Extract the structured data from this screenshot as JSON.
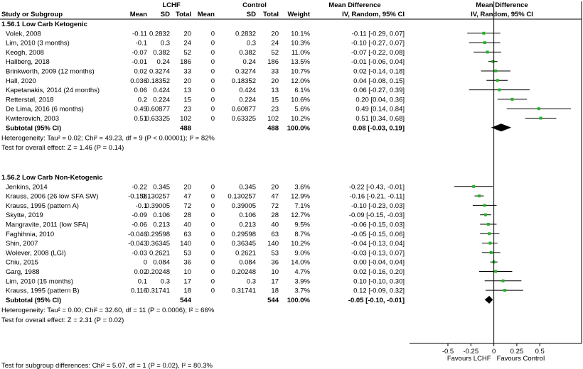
{
  "headers": {
    "group_lchf": "LCHF",
    "group_control": "Control",
    "md_header1": "Mean Difference",
    "md_header2": "IV, Random, 95% CI",
    "plot_header1": "Mean Difference",
    "plot_header2": "IV, Random, 95% CI",
    "columns": [
      "Study or Subgroup",
      "Mean",
      "SD",
      "Total",
      "Mean",
      "SD",
      "Total",
      "Weight"
    ]
  },
  "chart_data": {
    "type": "forest",
    "x_ticks": [
      "-0.5",
      "-0.25",
      "0",
      "0.25",
      "0.5"
    ],
    "x_tick_values": [
      -0.5,
      -0.25,
      0,
      0.25,
      0.5
    ],
    "xlim": [
      -0.86,
      1.0
    ],
    "favours_left": "Favours LCHF",
    "favours_right": "Favours Control",
    "colors": {
      "point": "#22b522",
      "diamond": "#000000",
      "line": "#000000"
    },
    "subgroups": [
      {
        "title": "1.56.1 Low Carb Ketogenic",
        "studies": [
          {
            "name": "Volek, 2008",
            "m1": "-0.11",
            "sd1": "0.2832",
            "n1": "20",
            "m2": "0",
            "sd2": "0.2832",
            "n2": "20",
            "weight": "10.1%",
            "ci_text": "-0.11 [-0.29, 0.07]",
            "md": -0.11,
            "lo": -0.29,
            "hi": 0.07
          },
          {
            "name": "Lim, 2010 (3 months)",
            "m1": "-0.1",
            "sd1": "0.3",
            "n1": "24",
            "m2": "0",
            "sd2": "0.3",
            "n2": "24",
            "weight": "10.3%",
            "ci_text": "-0.10 [-0.27, 0.07]",
            "md": -0.1,
            "lo": -0.27,
            "hi": 0.07
          },
          {
            "name": "Keogh, 2008",
            "m1": "-0.07",
            "sd1": "0.382",
            "n1": "52",
            "m2": "0",
            "sd2": "0.382",
            "n2": "52",
            "weight": "11.0%",
            "ci_text": "-0.07 [-0.22, 0.08]",
            "md": -0.07,
            "lo": -0.22,
            "hi": 0.08
          },
          {
            "name": "Hallberg, 2018",
            "m1": "-0.01",
            "sd1": "0.24",
            "n1": "186",
            "m2": "0",
            "sd2": "0.24",
            "n2": "186",
            "weight": "13.5%",
            "ci_text": "-0.01 [-0.06, 0.04]",
            "md": -0.01,
            "lo": -0.06,
            "hi": 0.04
          },
          {
            "name": "Brinkworth, 2009 (12 months)",
            "m1": "0.02",
            "sd1": "0.3274",
            "n1": "33",
            "m2": "0",
            "sd2": "0.3274",
            "n2": "33",
            "weight": "10.7%",
            "ci_text": "0.02 [-0.14, 0.18]",
            "md": 0.02,
            "lo": -0.14,
            "hi": 0.18
          },
          {
            "name": "Hall, 2020",
            "m1": "0.036",
            "sd1": "0.18352",
            "n1": "20",
            "m2": "0",
            "sd2": "0.18352",
            "n2": "20",
            "weight": "12.0%",
            "ci_text": "0.04 [-0.08, 0.15]",
            "md": 0.04,
            "lo": -0.08,
            "hi": 0.15
          },
          {
            "name": "Kapetanakis, 2014 (24 months)",
            "m1": "0.06",
            "sd1": "0.424",
            "n1": "13",
            "m2": "0",
            "sd2": "0.424",
            "n2": "13",
            "weight": "6.1%",
            "ci_text": "0.06 [-0.27, 0.39]",
            "md": 0.06,
            "lo": -0.27,
            "hi": 0.39
          },
          {
            "name": "Retterstøl, 2018",
            "m1": "0.2",
            "sd1": "0.224",
            "n1": "15",
            "m2": "0",
            "sd2": "0.224",
            "n2": "15",
            "weight": "10.6%",
            "ci_text": "0.20 [0.04, 0.36]",
            "md": 0.2,
            "lo": 0.04,
            "hi": 0.36
          },
          {
            "name": "De Lima, 2016 (6 months)",
            "m1": "0.49",
            "sd1": "0.60877",
            "n1": "23",
            "m2": "0",
            "sd2": "0.60877",
            "n2": "23",
            "weight": "5.6%",
            "ci_text": "0.49 [0.14, 0.84]",
            "md": 0.49,
            "lo": 0.14,
            "hi": 0.84
          },
          {
            "name": "Kwiterovich, 2003",
            "m1": "0.51",
            "sd1": "0.63325",
            "n1": "102",
            "m2": "0",
            "sd2": "0.63325",
            "n2": "102",
            "weight": "10.2%",
            "ci_text": "0.51 [0.34, 0.68]",
            "md": 0.51,
            "lo": 0.34,
            "hi": 0.68
          }
        ],
        "subtotal": {
          "label": "Subtotal (95% CI)",
          "n1": "488",
          "n2": "488",
          "weight": "100.0%",
          "ci_text": "0.08 [-0.03, 0.19]",
          "md": 0.08,
          "lo": -0.03,
          "hi": 0.19
        },
        "heterogeneity": "Heterogeneity: Tau² = 0.02; Chi² = 49.23, df = 9 (P < 0.00001); I² = 82%",
        "overall": "Test for overall effect: Z = 1.46 (P = 0.14)"
      },
      {
        "title": "1.56.2 Low Carb Non-Ketogenic",
        "studies": [
          {
            "name": "Jenkins, 2014",
            "m1": "-0.22",
            "sd1": "0.345",
            "n1": "20",
            "m2": "0",
            "sd2": "0.345",
            "n2": "20",
            "weight": "3.6%",
            "ci_text": "-0.22 [-0.43, -0.01]",
            "md": -0.22,
            "lo": -0.43,
            "hi": -0.01
          },
          {
            "name": "Krauss, 2006 (26 low SFA SW)",
            "m1": "-0.158",
            "sd1": "0.130257",
            "n1": "47",
            "m2": "0",
            "sd2": "0.130257",
            "n2": "47",
            "weight": "12.9%",
            "ci_text": "-0.16 [-0.21, -0.11]",
            "md": -0.16,
            "lo": -0.21,
            "hi": -0.11
          },
          {
            "name": "Krauss, 1995 (pattern A)",
            "m1": "-0.1",
            "sd1": "0.39005",
            "n1": "72",
            "m2": "0",
            "sd2": "0.39005",
            "n2": "72",
            "weight": "7.1%",
            "ci_text": "-0.10 [-0.23, 0.03]",
            "md": -0.1,
            "lo": -0.23,
            "hi": 0.03
          },
          {
            "name": "Skytte, 2019",
            "m1": "-0.09",
            "sd1": "0.106",
            "n1": "28",
            "m2": "0",
            "sd2": "0.106",
            "n2": "28",
            "weight": "12.7%",
            "ci_text": "-0.09 [-0.15, -0.03]",
            "md": -0.09,
            "lo": -0.15,
            "hi": -0.03
          },
          {
            "name": "Mangravite, 2011 (low SFA)",
            "m1": "-0.06",
            "sd1": "0.213",
            "n1": "40",
            "m2": "0",
            "sd2": "0.213",
            "n2": "40",
            "weight": "9.5%",
            "ci_text": "-0.06 [-0.15, 0.03]",
            "md": -0.06,
            "lo": -0.15,
            "hi": 0.03
          },
          {
            "name": "Faghihnia, 2010",
            "m1": "-0.046",
            "sd1": "0.29598",
            "n1": "63",
            "m2": "0",
            "sd2": "0.29598",
            "n2": "63",
            "weight": "8.7%",
            "ci_text": "-0.05 [-0.15, 0.06]",
            "md": -0.05,
            "lo": -0.15,
            "hi": 0.06
          },
          {
            "name": "Shin, 2007",
            "m1": "-0.043",
            "sd1": "0.36345",
            "n1": "140",
            "m2": "0",
            "sd2": "0.36345",
            "n2": "140",
            "weight": "10.2%",
            "ci_text": "-0.04 [-0.13, 0.04]",
            "md": -0.04,
            "lo": -0.13,
            "hi": 0.04
          },
          {
            "name": "Wolever, 2008 (LGI)",
            "m1": "-0.03",
            "sd1": "0.2621",
            "n1": "53",
            "m2": "0",
            "sd2": "0.2621",
            "n2": "53",
            "weight": "9.0%",
            "ci_text": "-0.03 [-0.13, 0.07]",
            "md": -0.03,
            "lo": -0.13,
            "hi": 0.07
          },
          {
            "name": "Chiu, 2015",
            "m1": "0",
            "sd1": "0.084",
            "n1": "36",
            "m2": "0",
            "sd2": "0.084",
            "n2": "36",
            "weight": "14.0%",
            "ci_text": "0.00 [-0.04, 0.04]",
            "md": 0.0,
            "lo": -0.04,
            "hi": 0.04
          },
          {
            "name": "Garg, 1988",
            "m1": "0.02",
            "sd1": "0.20248",
            "n1": "10",
            "m2": "0",
            "sd2": "0.20248",
            "n2": "10",
            "weight": "4.7%",
            "ci_text": "0.02 [-0.16, 0.20]",
            "md": 0.02,
            "lo": -0.16,
            "hi": 0.2
          },
          {
            "name": "Lim, 2010 (15 months)",
            "m1": "0.1",
            "sd1": "0.3",
            "n1": "17",
            "m2": "0",
            "sd2": "0.3",
            "n2": "17",
            "weight": "3.9%",
            "ci_text": "0.10 [-0.10, 0.30]",
            "md": 0.1,
            "lo": -0.1,
            "hi": 0.3
          },
          {
            "name": "Krauss, 1995 (pattern B)",
            "m1": "0.116",
            "sd1": "0.31741",
            "n1": "18",
            "m2": "0",
            "sd2": "0.31741",
            "n2": "18",
            "weight": "3.7%",
            "ci_text": "0.12 [-0.09, 0.32]",
            "md": 0.12,
            "lo": -0.09,
            "hi": 0.32
          }
        ],
        "subtotal": {
          "label": "Subtotal (95% CI)",
          "n1": "544",
          "n2": "544",
          "weight": "100.0%",
          "ci_text": "-0.05 [-0.10, -0.01]",
          "md": -0.05,
          "lo": -0.1,
          "hi": -0.01
        },
        "heterogeneity": "Heterogeneity: Tau² = 0.00; Chi² = 32.60, df = 11 (P = 0.0006); I² = 66%",
        "overall": "Test for overall effect: Z = 2.31 (P = 0.02)"
      }
    ],
    "subgroup_differences": "Test for subgroup differences: Chi² = 5.07, df = 1 (P = 0.02), I² = 80.3%"
  }
}
